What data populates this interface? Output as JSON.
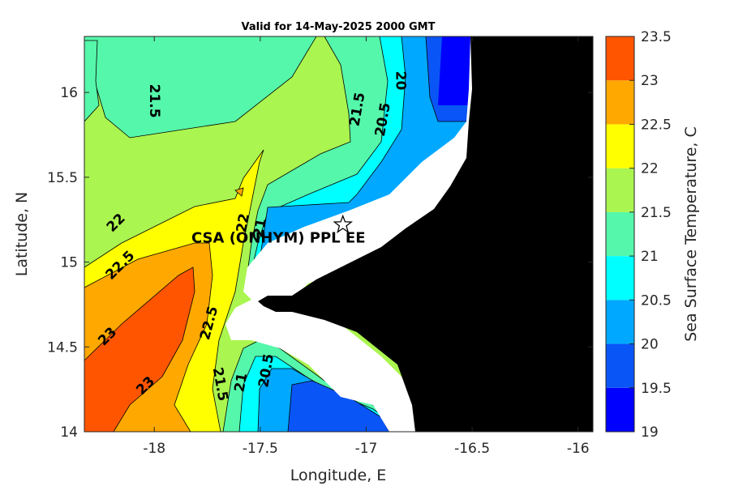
{
  "chart_data": {
    "type": "heatmap",
    "title": "Valid for 14-May-2025 2000 GMT",
    "xlabel": "Longitude, E",
    "ylabel": "Latitude, N",
    "xlim": [
      -18.33,
      -15.93
    ],
    "ylim": [
      14.0,
      16.33
    ],
    "x_ticks": [
      {
        "value": -18,
        "label": "-18"
      },
      {
        "value": -17.5,
        "label": "-17.5"
      },
      {
        "value": -17,
        "label": "-17"
      },
      {
        "value": -16.5,
        "label": "-16.5"
      },
      {
        "value": -16,
        "label": "-16"
      }
    ],
    "y_ticks": [
      {
        "value": 14,
        "label": "14"
      },
      {
        "value": 14.5,
        "label": "14.5"
      },
      {
        "value": 15,
        "label": "15"
      },
      {
        "value": 15.5,
        "label": "15.5"
      },
      {
        "value": 16,
        "label": "16"
      }
    ],
    "colorbar": {
      "label": "Sea Surface Temperature, C",
      "ticks": [
        "19",
        "19.5",
        "20",
        "20.5",
        "21",
        "21.5",
        "22",
        "22.5",
        "23",
        "23.5"
      ],
      "bands": [
        {
          "from": 19.0,
          "to": 19.5,
          "color": "#0000ff"
        },
        {
          "from": 19.5,
          "to": 20.0,
          "color": "#0a55f6"
        },
        {
          "from": 20.0,
          "to": 20.5,
          "color": "#00a8ff"
        },
        {
          "from": 20.5,
          "to": 21.0,
          "color": "#00ffff"
        },
        {
          "from": 21.0,
          "to": 21.5,
          "color": "#55f7aa"
        },
        {
          "from": 21.5,
          "to": 22.0,
          "color": "#aaf54f"
        },
        {
          "from": 22.0,
          "to": 22.5,
          "color": "#ffff00"
        },
        {
          "from": 22.5,
          "to": 23.0,
          "color": "#ffa800"
        },
        {
          "from": 23.0,
          "to": 23.5,
          "color": "#ff5500"
        }
      ]
    },
    "contour_labels": [
      {
        "text": "21.5",
        "lon": -18.0,
        "lat": 15.95,
        "angle": 90
      },
      {
        "text": "21.5",
        "lon": -17.04,
        "lat": 15.9,
        "angle": -80
      },
      {
        "text": "20.5",
        "lon": -16.92,
        "lat": 15.84,
        "angle": -80
      },
      {
        "text": "20",
        "lon": -16.84,
        "lat": 16.07,
        "angle": 90
      },
      {
        "text": "22",
        "lon": -18.18,
        "lat": 15.23,
        "angle": -45
      },
      {
        "text": "22.5",
        "lon": -18.16,
        "lat": 14.98,
        "angle": -45
      },
      {
        "text": "22",
        "lon": -17.58,
        "lat": 15.23,
        "angle": -80
      },
      {
        "text": "21",
        "lon": -17.5,
        "lat": 15.2,
        "angle": -80
      },
      {
        "text": "22.5",
        "lon": -17.74,
        "lat": 14.64,
        "angle": -75
      },
      {
        "text": "23",
        "lon": -18.22,
        "lat": 14.56,
        "angle": -45
      },
      {
        "text": "23",
        "lon": -18.04,
        "lat": 14.27,
        "angle": -45
      },
      {
        "text": "21.5",
        "lon": -17.69,
        "lat": 14.28,
        "angle": 80
      },
      {
        "text": "21",
        "lon": -17.59,
        "lat": 14.29,
        "angle": -80
      },
      {
        "text": "20.5",
        "lon": -17.47,
        "lat": 14.36,
        "angle": -80
      }
    ],
    "station": {
      "name": "CSA (ONHYM) PPL EE",
      "lon": -17.11,
      "lat": 15.22
    }
  }
}
